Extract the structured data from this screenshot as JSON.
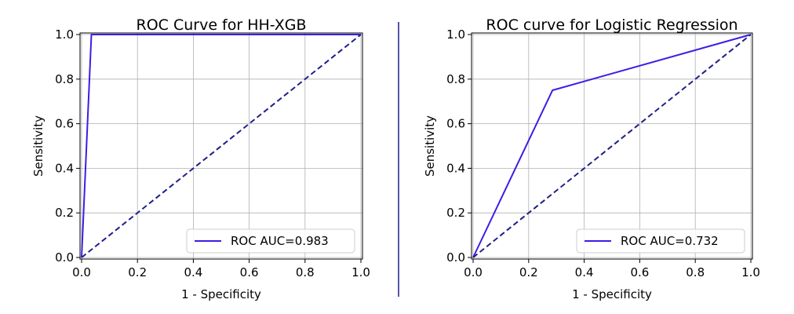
{
  "chart_data": [
    {
      "type": "line",
      "title": "ROC Curve for HH-XGB",
      "xlabel": "1 - Specificity",
      "ylabel": "Sensitivity",
      "xlim": [
        0.0,
        1.0
      ],
      "ylim": [
        0.0,
        1.0
      ],
      "xticks": [
        "0.0",
        "0.2",
        "0.4",
        "0.6",
        "0.8",
        "1.0"
      ],
      "yticks": [
        "0.0",
        "0.2",
        "0.4",
        "0.6",
        "0.8",
        "1.0"
      ],
      "grid": true,
      "legend_position": "lower-right",
      "series": [
        {
          "name": "ROC AUC=0.983",
          "color": "#3a1ee6",
          "style": "solid",
          "x": [
            0.0,
            0.035,
            1.0
          ],
          "y": [
            0.0,
            1.0,
            1.0
          ]
        },
        {
          "color": "#1f1f8a",
          "style": "dashed",
          "x": [
            0.0,
            1.0
          ],
          "y": [
            0.0,
            1.0
          ]
        }
      ]
    },
    {
      "type": "line",
      "title": "ROC curve for Logistic Regression",
      "xlabel": "1 - Specificity",
      "ylabel": "Sensitivity",
      "xlim": [
        0.0,
        1.0
      ],
      "ylim": [
        0.0,
        1.0
      ],
      "xticks": [
        "0.0",
        "0.2",
        "0.4",
        "0.6",
        "0.8",
        "1.0"
      ],
      "yticks": [
        "0.0",
        "0.2",
        "0.4",
        "0.6",
        "0.8",
        "1.0"
      ],
      "grid": true,
      "legend_position": "lower-right",
      "series": [
        {
          "name": "ROC AUC=0.732",
          "color": "#3a1ee6",
          "style": "solid",
          "x": [
            0.0,
            0.286,
            1.0
          ],
          "y": [
            0.0,
            0.75,
            1.0
          ]
        },
        {
          "color": "#1f1f8a",
          "style": "dashed",
          "x": [
            0.0,
            1.0
          ],
          "y": [
            0.0,
            1.0
          ]
        }
      ]
    }
  ],
  "divider_color": "#1f1f8a"
}
